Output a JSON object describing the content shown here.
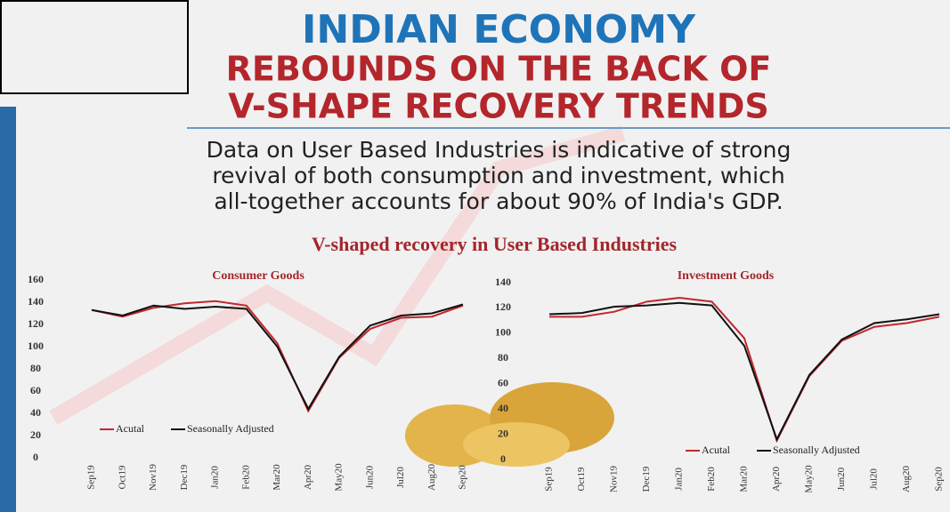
{
  "header": {
    "title": "INDIAN ECONOMY",
    "subtitle_line1": "REBOUNDS ON THE BACK OF",
    "subtitle_line2": "V-SHAPE RECOVERY TRENDS",
    "description": [
      "Data on User Based Industries is indicative of strong",
      "revival of both consumption and investment, which",
      "all-together accounts for about 90% of India's GDP."
    ],
    "chart_group_title": "V-shaped recovery in User Based Industries"
  },
  "chart_data": [
    {
      "type": "line",
      "title": "Consumer Goods",
      "categories": [
        "Sep19",
        "Oct19",
        "Nov19",
        "Dec19",
        "Jan20",
        "Feb20",
        "Mar20",
        "Apr20",
        "May20",
        "Jun20",
        "Jul20",
        "Aug20",
        "Sep20"
      ],
      "series": [
        {
          "name": "Acutal",
          "color": "#c0282d",
          "values": [
            133,
            127,
            135,
            139,
            141,
            137,
            103,
            42,
            90,
            116,
            126,
            127,
            137
          ]
        },
        {
          "name": "Seasonally Adjusted",
          "color": "#111111",
          "values": [
            133,
            128,
            137,
            134,
            136,
            134,
            100,
            44,
            91,
            119,
            128,
            130,
            138
          ]
        }
      ],
      "ylim": [
        0,
        160
      ],
      "yticks": [
        0,
        20,
        40,
        60,
        80,
        100,
        120,
        140,
        160
      ]
    },
    {
      "type": "line",
      "title": "Investment Goods",
      "categories": [
        "Sep19",
        "Oct19",
        "Nov19",
        "Dec19",
        "Jan20",
        "Feb20",
        "Mar20",
        "Apr20",
        "May20",
        "Jun20",
        "Jul20",
        "Aug20",
        "Sep20"
      ],
      "series": [
        {
          "name": "Acutal",
          "color": "#c0282d",
          "values": [
            113,
            113,
            117,
            125,
            128,
            125,
            96,
            15,
            66,
            94,
            105,
            108,
            113
          ]
        },
        {
          "name": "Seasonally Adjusted",
          "color": "#111111",
          "values": [
            115,
            116,
            121,
            122,
            124,
            122,
            90,
            16,
            67,
            95,
            108,
            111,
            115
          ]
        }
      ],
      "ylim": [
        0,
        140
      ],
      "yticks": [
        0,
        20,
        40,
        60,
        80,
        100,
        120,
        140
      ]
    }
  ]
}
